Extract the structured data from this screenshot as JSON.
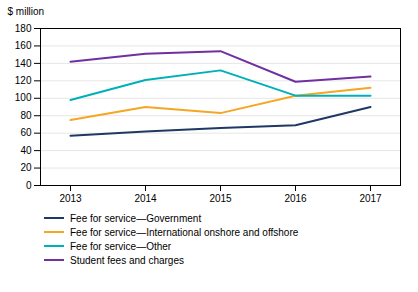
{
  "chart_data": {
    "type": "line",
    "x": [
      2013,
      2014,
      2015,
      2016,
      2017
    ],
    "series": [
      {
        "name": "Fee for service—Government",
        "color": "#1f3864",
        "values": [
          57,
          62,
          66,
          69,
          90
        ]
      },
      {
        "name": "Fee for service—International onshore and offshore",
        "color": "#f5a623",
        "values": [
          75,
          90,
          83,
          103,
          112
        ]
      },
      {
        "name": "Fee for service—Other",
        "color": "#00b0b9",
        "values": [
          98,
          121,
          132,
          103,
          103
        ]
      },
      {
        "name": "Student fees and charges",
        "color": "#7030a0",
        "values": [
          142,
          151,
          154,
          119,
          125
        ]
      }
    ],
    "y_label": "$ million",
    "xlim": [
      2012.6,
      2017.4
    ],
    "xticks": [
      2013,
      2014,
      2015,
      2016,
      2017
    ],
    "ylim": [
      0,
      180
    ],
    "yticks": [
      0,
      20,
      40,
      60,
      80,
      100,
      120,
      140,
      160,
      180
    ],
    "grid": true,
    "legend": "bottom"
  }
}
